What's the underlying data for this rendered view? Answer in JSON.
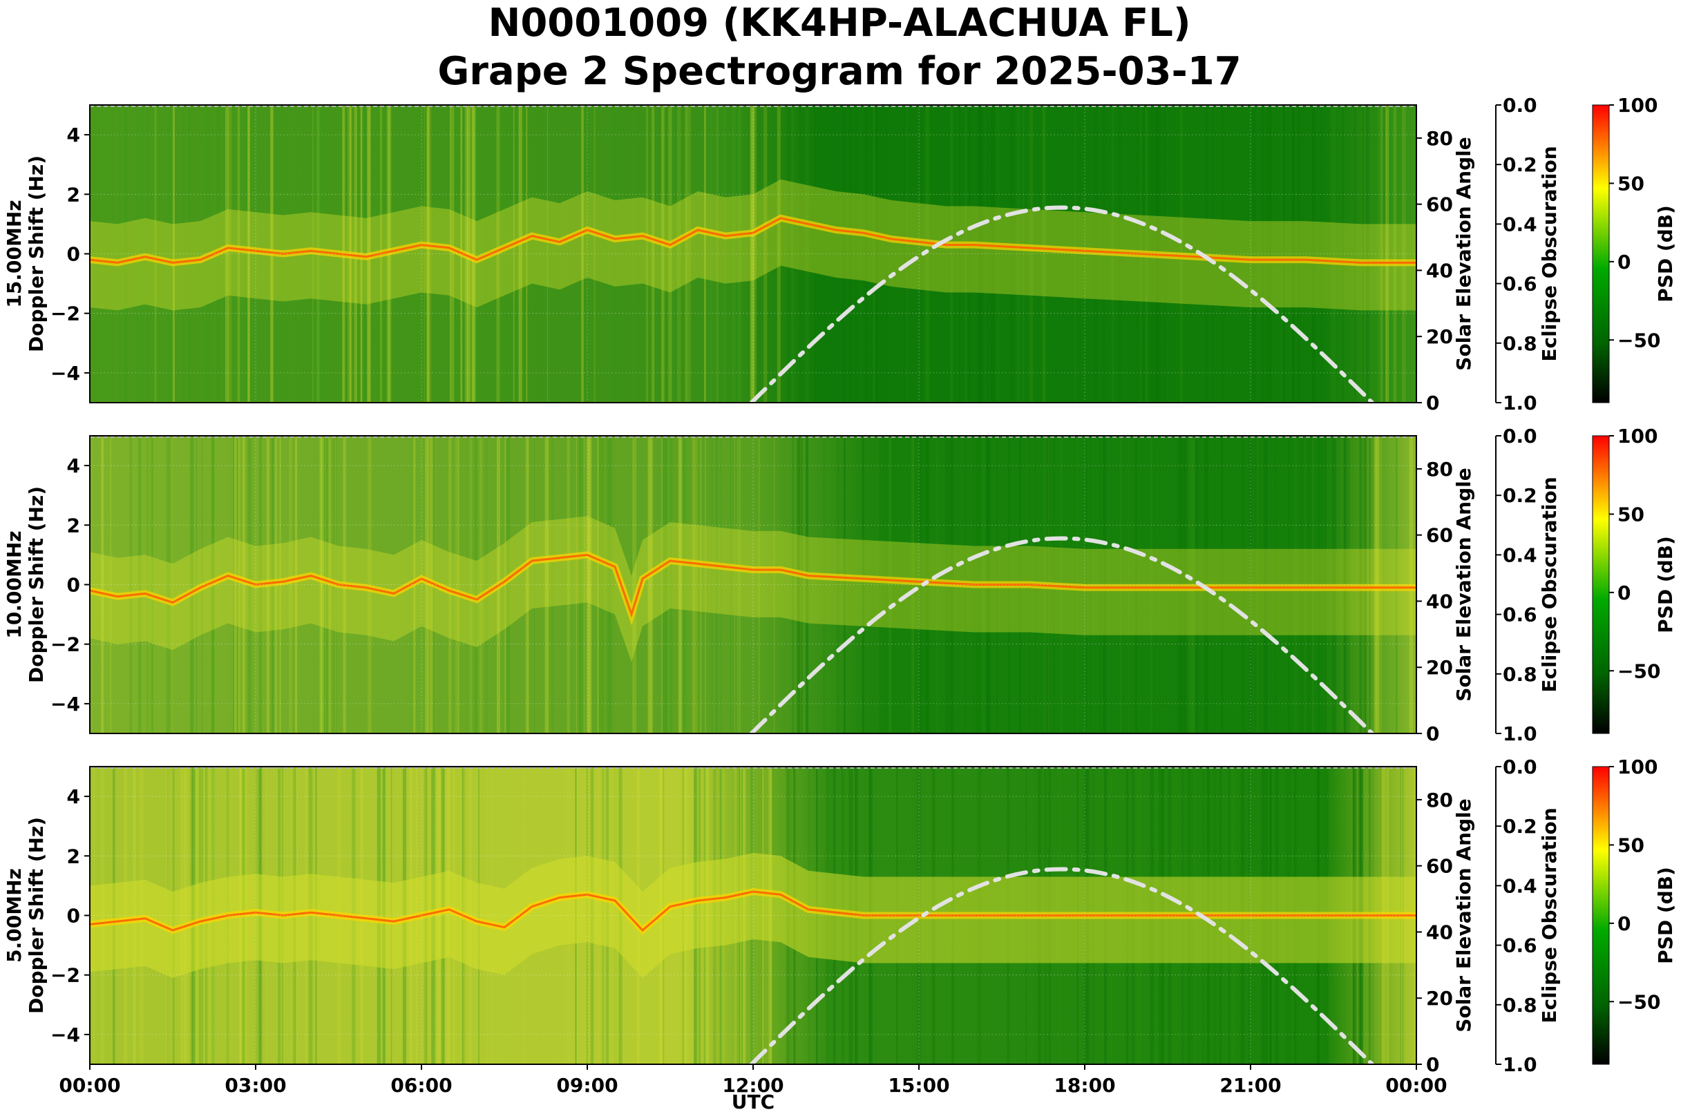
{
  "chart_data": {
    "type": "heatmap",
    "title_line1": "N0001009 (KK4HP-ALACHUA FL)",
    "title_line2": "Grape 2 Spectrogram for 2025-03-17",
    "xlabel": "UTC",
    "x_tick_labels": [
      "00:00",
      "03:00",
      "06:00",
      "09:00",
      "12:00",
      "15:00",
      "18:00",
      "21:00",
      "00:00"
    ],
    "xlim_hours": [
      0,
      24
    ],
    "ylabel_suffix": "Doppler Shift (Hz)",
    "ylim": [
      -5,
      5
    ],
    "y_ticks": [
      -4,
      -2,
      0,
      2,
      4
    ],
    "y_tick_labels": [
      "−4",
      "−2",
      "0",
      "2",
      "4"
    ],
    "solar_axis": {
      "label": "Solar Elevation Angle",
      "ylim": [
        0,
        90
      ],
      "ticks": [
        0,
        20,
        40,
        60,
        80
      ],
      "tick_labels": [
        "0",
        "20",
        "40",
        "60",
        "80"
      ]
    },
    "eclipse_axis": {
      "label": "Eclipse Obscuration",
      "ylim": [
        1.0,
        0.0
      ],
      "ticks": [
        0.0,
        0.2,
        0.4,
        0.6,
        0.8,
        1.0
      ],
      "tick_labels": [
        "0.0",
        "0.2",
        "0.4",
        "0.6",
        "0.8",
        "1.0"
      ]
    },
    "colorbar": {
      "label": "PSD (dB)",
      "range": [
        -90,
        100
      ],
      "ticks": [
        100,
        50,
        0,
        -50
      ],
      "tick_labels": [
        "100",
        "50",
        "0",
        "−50"
      ],
      "colors": [
        "#000000",
        "#006400",
        "#00aa00",
        "#ffff00",
        "#ff0000"
      ]
    },
    "solar_elevation": {
      "sunrise_hours": 11.97,
      "solar_noon_hours": 17.6,
      "sunset_hours": 23.2,
      "peak_degrees": 59
    },
    "panels": [
      {
        "band": "15.00MHz",
        "ylabel": "15.00MHz",
        "carrier_trace": [
          [
            0,
            -0.2
          ],
          [
            0.5,
            -0.3
          ],
          [
            1,
            -0.1
          ],
          [
            1.5,
            -0.3
          ],
          [
            2,
            -0.2
          ],
          [
            2.5,
            0.2
          ],
          [
            3,
            0.1
          ],
          [
            3.5,
            0.0
          ],
          [
            4,
            0.1
          ],
          [
            4.5,
            0.0
          ],
          [
            5,
            -0.1
          ],
          [
            5.5,
            0.1
          ],
          [
            6,
            0.3
          ],
          [
            6.5,
            0.2
          ],
          [
            7,
            -0.2
          ],
          [
            7.5,
            0.2
          ],
          [
            8,
            0.6
          ],
          [
            8.5,
            0.4
          ],
          [
            9,
            0.8
          ],
          [
            9.5,
            0.5
          ],
          [
            10,
            0.6
          ],
          [
            10.5,
            0.3
          ],
          [
            11,
            0.8
          ],
          [
            11.5,
            0.6
          ],
          [
            12,
            0.7
          ],
          [
            12.5,
            1.2
          ],
          [
            13,
            1.0
          ],
          [
            13.5,
            0.8
          ],
          [
            14,
            0.7
          ],
          [
            14.5,
            0.5
          ],
          [
            15,
            0.4
          ],
          [
            15.5,
            0.3
          ],
          [
            16,
            0.3
          ],
          [
            17,
            0.2
          ],
          [
            18,
            0.1
          ],
          [
            19,
            0.0
          ],
          [
            20,
            -0.1
          ],
          [
            21,
            -0.2
          ],
          [
            22,
            -0.2
          ],
          [
            23,
            -0.3
          ],
          [
            24,
            -0.3
          ]
        ]
      },
      {
        "band": "10.00MHz",
        "ylabel": "10.00MHz",
        "carrier_trace": [
          [
            0,
            -0.2
          ],
          [
            0.5,
            -0.4
          ],
          [
            1,
            -0.3
          ],
          [
            1.5,
            -0.6
          ],
          [
            2,
            -0.1
          ],
          [
            2.5,
            0.3
          ],
          [
            3,
            0.0
          ],
          [
            3.5,
            0.1
          ],
          [
            4,
            0.3
          ],
          [
            4.5,
            0.0
          ],
          [
            5,
            -0.1
          ],
          [
            5.5,
            -0.3
          ],
          [
            6,
            0.2
          ],
          [
            6.5,
            -0.2
          ],
          [
            7,
            -0.5
          ],
          [
            7.5,
            0.1
          ],
          [
            8,
            0.8
          ],
          [
            8.5,
            0.9
          ],
          [
            9,
            1.0
          ],
          [
            9.5,
            0.6
          ],
          [
            9.8,
            -1.0
          ],
          [
            10,
            0.2
          ],
          [
            10.5,
            0.8
          ],
          [
            11,
            0.7
          ],
          [
            11.5,
            0.6
          ],
          [
            12,
            0.5
          ],
          [
            12.5,
            0.5
          ],
          [
            13,
            0.3
          ],
          [
            14,
            0.2
          ],
          [
            15,
            0.1
          ],
          [
            16,
            0.0
          ],
          [
            17,
            0.0
          ],
          [
            18,
            -0.1
          ],
          [
            19,
            -0.1
          ],
          [
            20,
            -0.1
          ],
          [
            21,
            -0.1
          ],
          [
            22,
            -0.1
          ],
          [
            23,
            -0.1
          ],
          [
            24,
            -0.1
          ]
        ]
      },
      {
        "band": "5.00MHz",
        "ylabel": "5.00MHz",
        "carrier_trace": [
          [
            0,
            -0.3
          ],
          [
            0.5,
            -0.2
          ],
          [
            1,
            -0.1
          ],
          [
            1.5,
            -0.5
          ],
          [
            2,
            -0.2
          ],
          [
            2.5,
            0.0
          ],
          [
            3,
            0.1
          ],
          [
            3.5,
            0.0
          ],
          [
            4,
            0.1
          ],
          [
            4.5,
            0.0
          ],
          [
            5,
            -0.1
          ],
          [
            5.5,
            -0.2
          ],
          [
            6,
            0.0
          ],
          [
            6.5,
            0.2
          ],
          [
            7,
            -0.2
          ],
          [
            7.5,
            -0.4
          ],
          [
            8,
            0.3
          ],
          [
            8.5,
            0.6
          ],
          [
            9,
            0.7
          ],
          [
            9.5,
            0.5
          ],
          [
            10,
            -0.5
          ],
          [
            10.5,
            0.3
          ],
          [
            11,
            0.5
          ],
          [
            11.5,
            0.6
          ],
          [
            12,
            0.8
          ],
          [
            12.5,
            0.7
          ],
          [
            13,
            0.2
          ],
          [
            14,
            0.0
          ],
          [
            15,
            0.0
          ],
          [
            16,
            0.0
          ],
          [
            17,
            0.0
          ],
          [
            18,
            0.0
          ],
          [
            19,
            0.0
          ],
          [
            20,
            0.0
          ],
          [
            21,
            0.0
          ],
          [
            22,
            0.0
          ],
          [
            23,
            0.0
          ],
          [
            24,
            0.0
          ]
        ]
      }
    ]
  }
}
